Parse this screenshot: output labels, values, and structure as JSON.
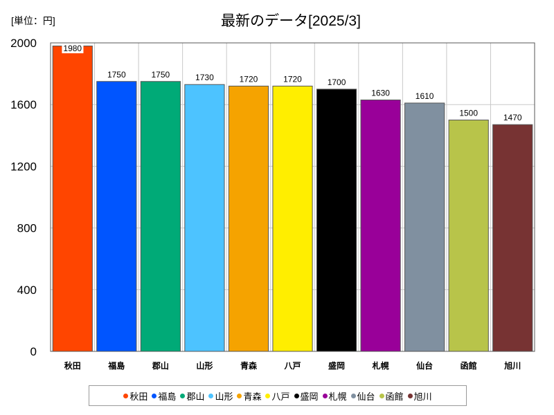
{
  "unit_label": "[単位：円]",
  "chart_data": {
    "type": "bar",
    "title": "最新のデータ[2025/3]",
    "xlabel": "",
    "ylabel": "",
    "categories": [
      "秋田",
      "福島",
      "郡山",
      "山形",
      "青森",
      "八戸",
      "盛岡",
      "札幌",
      "仙台",
      "函館",
      "旭川"
    ],
    "values": [
      1980,
      1750,
      1750,
      1730,
      1720,
      1720,
      1700,
      1630,
      1610,
      1500,
      1470
    ],
    "colors": [
      "#ff4500",
      "#0055ff",
      "#00aa77",
      "#4dc3ff",
      "#f5a300",
      "#ffee00",
      "#000000",
      "#990099",
      "#8090a0",
      "#b8c44a",
      "#773333"
    ],
    "ylim": [
      0,
      2000
    ],
    "yticks": [
      0,
      400,
      800,
      1200,
      1600,
      2000
    ],
    "grid": true,
    "legend_position": "bottom"
  }
}
